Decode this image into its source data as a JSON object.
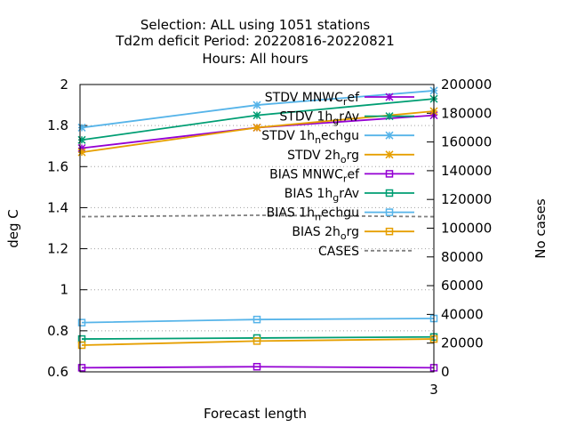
{
  "chart_data": {
    "type": "line",
    "title_lines": [
      "Selection: ALL using  1051 stations",
      "Td2m deficit   Period: 20220816-20220821",
      "Hours:  All hours"
    ],
    "xlabel": "Forecast length",
    "ylabel": "deg C",
    "y2label": "No cases",
    "x_ticks": [
      "3"
    ],
    "ylim": [
      0.6,
      2.0
    ],
    "y_ticks": [
      "0.6",
      "0.8",
      "1",
      "1.2",
      "1.4",
      "1.6",
      "1.8",
      "2"
    ],
    "y2lim": [
      0,
      200000
    ],
    "y2_ticks": [
      "0",
      "20000",
      "40000",
      "60000",
      "80000",
      "100000",
      "120000",
      "140000",
      "160000",
      "180000",
      "200000"
    ],
    "grid": "horizontal dotted",
    "legend_position": "top-right",
    "series": [
      {
        "name": "STDV MNWC_ref",
        "color": "#9400d3",
        "marker": "star",
        "values": [
          1.69,
          1.79,
          1.85
        ]
      },
      {
        "name": "STDV 1h_grAv",
        "color": "#009e73",
        "marker": "star",
        "values": [
          1.73,
          1.85,
          1.93
        ]
      },
      {
        "name": "STDV 1h_nechgu",
        "color": "#56b4e9",
        "marker": "star",
        "values": [
          1.79,
          1.9,
          1.97
        ]
      },
      {
        "name": "STDV 2h_org",
        "color": "#e69f00",
        "marker": "star",
        "values": [
          1.67,
          1.79,
          1.87
        ]
      },
      {
        "name": "BIAS MNWC_ref",
        "color": "#9400d3",
        "marker": "square",
        "values": [
          0.62,
          0.625,
          0.62
        ]
      },
      {
        "name": "BIAS 1h_grAv",
        "color": "#009e73",
        "marker": "square",
        "values": [
          0.76,
          0.765,
          0.77
        ]
      },
      {
        "name": "BIAS 1h_nechgu",
        "color": "#56b4e9",
        "marker": "square",
        "values": [
          0.84,
          0.855,
          0.86
        ]
      },
      {
        "name": "BIAS 2h_org",
        "color": "#e69f00",
        "marker": "square",
        "values": [
          0.73,
          0.75,
          0.76
        ]
      },
      {
        "name": "CASES",
        "color": "#808080",
        "marker": "none",
        "axis": "y2",
        "dashed": true,
        "values": [
          108000,
          109000,
          108000
        ]
      }
    ],
    "legend": [
      {
        "main": "STDV MNWC",
        "sub": "r",
        "rest": "ef"
      },
      {
        "main": "STDV 1h",
        "sub": "g",
        "rest": "rAv"
      },
      {
        "main": "STDV 1h",
        "sub": "n",
        "rest": "echgu"
      },
      {
        "main": "STDV 2h",
        "sub": "o",
        "rest": "rg"
      },
      {
        "main": "BIAS MNWC",
        "sub": "r",
        "rest": "ef"
      },
      {
        "main": "BIAS 1h",
        "sub": "g",
        "rest": "rAv"
      },
      {
        "main": "BIAS 1h",
        "sub": "n",
        "rest": "echgu"
      },
      {
        "main": "BIAS 2h",
        "sub": "o",
        "rest": "rg"
      },
      {
        "main": "CASES",
        "sub": "",
        "rest": ""
      }
    ]
  }
}
